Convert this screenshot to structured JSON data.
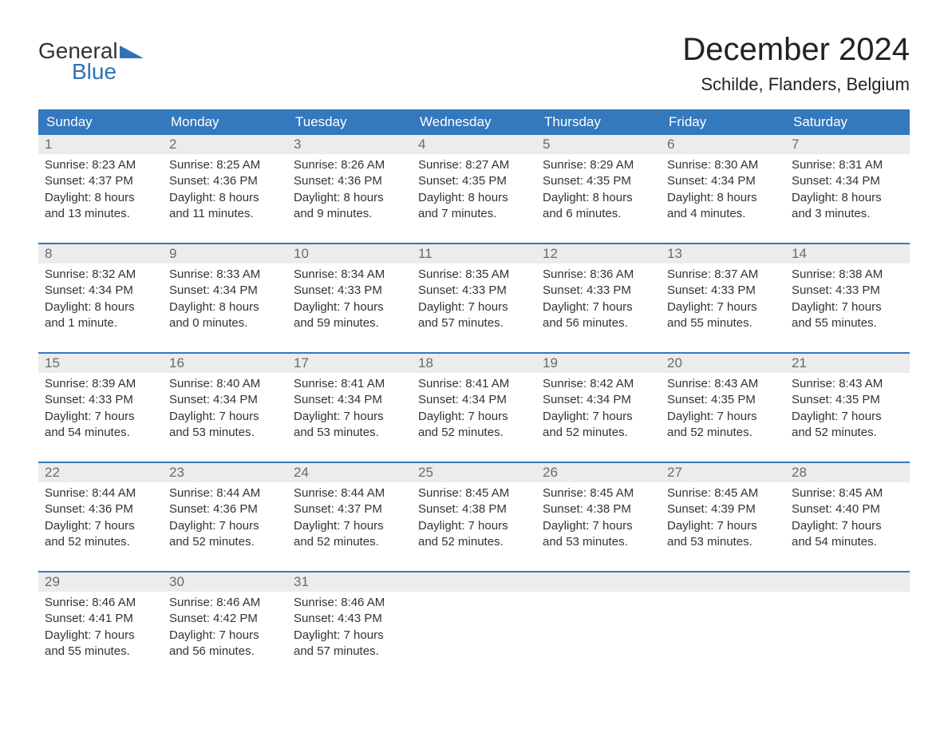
{
  "logo": {
    "text1": "General",
    "text2": "Blue",
    "triangle_color": "#2f72b6"
  },
  "title": "December 2024",
  "location": "Schilde, Flanders, Belgium",
  "colors": {
    "header_bg": "#3478bd",
    "header_text": "#ffffff",
    "week_border": "#3478bd",
    "daynum_bg": "#ececec",
    "daynum_text": "#6a6a6a",
    "body_text": "#333333",
    "background": "#ffffff"
  },
  "days_of_week": [
    "Sunday",
    "Monday",
    "Tuesday",
    "Wednesday",
    "Thursday",
    "Friday",
    "Saturday"
  ],
  "weeks": [
    [
      {
        "n": "1",
        "sunrise": "8:23 AM",
        "sunset": "4:37 PM",
        "dl1": "8 hours",
        "dl2": "and 13 minutes."
      },
      {
        "n": "2",
        "sunrise": "8:25 AM",
        "sunset": "4:36 PM",
        "dl1": "8 hours",
        "dl2": "and 11 minutes."
      },
      {
        "n": "3",
        "sunrise": "8:26 AM",
        "sunset": "4:36 PM",
        "dl1": "8 hours",
        "dl2": "and 9 minutes."
      },
      {
        "n": "4",
        "sunrise": "8:27 AM",
        "sunset": "4:35 PM",
        "dl1": "8 hours",
        "dl2": "and 7 minutes."
      },
      {
        "n": "5",
        "sunrise": "8:29 AM",
        "sunset": "4:35 PM",
        "dl1": "8 hours",
        "dl2": "and 6 minutes."
      },
      {
        "n": "6",
        "sunrise": "8:30 AM",
        "sunset": "4:34 PM",
        "dl1": "8 hours",
        "dl2": "and 4 minutes."
      },
      {
        "n": "7",
        "sunrise": "8:31 AM",
        "sunset": "4:34 PM",
        "dl1": "8 hours",
        "dl2": "and 3 minutes."
      }
    ],
    [
      {
        "n": "8",
        "sunrise": "8:32 AM",
        "sunset": "4:34 PM",
        "dl1": "8 hours",
        "dl2": "and 1 minute."
      },
      {
        "n": "9",
        "sunrise": "8:33 AM",
        "sunset": "4:34 PM",
        "dl1": "8 hours",
        "dl2": "and 0 minutes."
      },
      {
        "n": "10",
        "sunrise": "8:34 AM",
        "sunset": "4:33 PM",
        "dl1": "7 hours",
        "dl2": "and 59 minutes."
      },
      {
        "n": "11",
        "sunrise": "8:35 AM",
        "sunset": "4:33 PM",
        "dl1": "7 hours",
        "dl2": "and 57 minutes."
      },
      {
        "n": "12",
        "sunrise": "8:36 AM",
        "sunset": "4:33 PM",
        "dl1": "7 hours",
        "dl2": "and 56 minutes."
      },
      {
        "n": "13",
        "sunrise": "8:37 AM",
        "sunset": "4:33 PM",
        "dl1": "7 hours",
        "dl2": "and 55 minutes."
      },
      {
        "n": "14",
        "sunrise": "8:38 AM",
        "sunset": "4:33 PM",
        "dl1": "7 hours",
        "dl2": "and 55 minutes."
      }
    ],
    [
      {
        "n": "15",
        "sunrise": "8:39 AM",
        "sunset": "4:33 PM",
        "dl1": "7 hours",
        "dl2": "and 54 minutes."
      },
      {
        "n": "16",
        "sunrise": "8:40 AM",
        "sunset": "4:34 PM",
        "dl1": "7 hours",
        "dl2": "and 53 minutes."
      },
      {
        "n": "17",
        "sunrise": "8:41 AM",
        "sunset": "4:34 PM",
        "dl1": "7 hours",
        "dl2": "and 53 minutes."
      },
      {
        "n": "18",
        "sunrise": "8:41 AM",
        "sunset": "4:34 PM",
        "dl1": "7 hours",
        "dl2": "and 52 minutes."
      },
      {
        "n": "19",
        "sunrise": "8:42 AM",
        "sunset": "4:34 PM",
        "dl1": "7 hours",
        "dl2": "and 52 minutes."
      },
      {
        "n": "20",
        "sunrise": "8:43 AM",
        "sunset": "4:35 PM",
        "dl1": "7 hours",
        "dl2": "and 52 minutes."
      },
      {
        "n": "21",
        "sunrise": "8:43 AM",
        "sunset": "4:35 PM",
        "dl1": "7 hours",
        "dl2": "and 52 minutes."
      }
    ],
    [
      {
        "n": "22",
        "sunrise": "8:44 AM",
        "sunset": "4:36 PM",
        "dl1": "7 hours",
        "dl2": "and 52 minutes."
      },
      {
        "n": "23",
        "sunrise": "8:44 AM",
        "sunset": "4:36 PM",
        "dl1": "7 hours",
        "dl2": "and 52 minutes."
      },
      {
        "n": "24",
        "sunrise": "8:44 AM",
        "sunset": "4:37 PM",
        "dl1": "7 hours",
        "dl2": "and 52 minutes."
      },
      {
        "n": "25",
        "sunrise": "8:45 AM",
        "sunset": "4:38 PM",
        "dl1": "7 hours",
        "dl2": "and 52 minutes."
      },
      {
        "n": "26",
        "sunrise": "8:45 AM",
        "sunset": "4:38 PM",
        "dl1": "7 hours",
        "dl2": "and 53 minutes."
      },
      {
        "n": "27",
        "sunrise": "8:45 AM",
        "sunset": "4:39 PM",
        "dl1": "7 hours",
        "dl2": "and 53 minutes."
      },
      {
        "n": "28",
        "sunrise": "8:45 AM",
        "sunset": "4:40 PM",
        "dl1": "7 hours",
        "dl2": "and 54 minutes."
      }
    ],
    [
      {
        "n": "29",
        "sunrise": "8:46 AM",
        "sunset": "4:41 PM",
        "dl1": "7 hours",
        "dl2": "and 55 minutes."
      },
      {
        "n": "30",
        "sunrise": "8:46 AM",
        "sunset": "4:42 PM",
        "dl1": "7 hours",
        "dl2": "and 56 minutes."
      },
      {
        "n": "31",
        "sunrise": "8:46 AM",
        "sunset": "4:43 PM",
        "dl1": "7 hours",
        "dl2": "and 57 minutes."
      },
      null,
      null,
      null,
      null
    ]
  ],
  "labels": {
    "sunrise_prefix": "Sunrise: ",
    "sunset_prefix": "Sunset: ",
    "daylight_prefix": "Daylight: "
  }
}
